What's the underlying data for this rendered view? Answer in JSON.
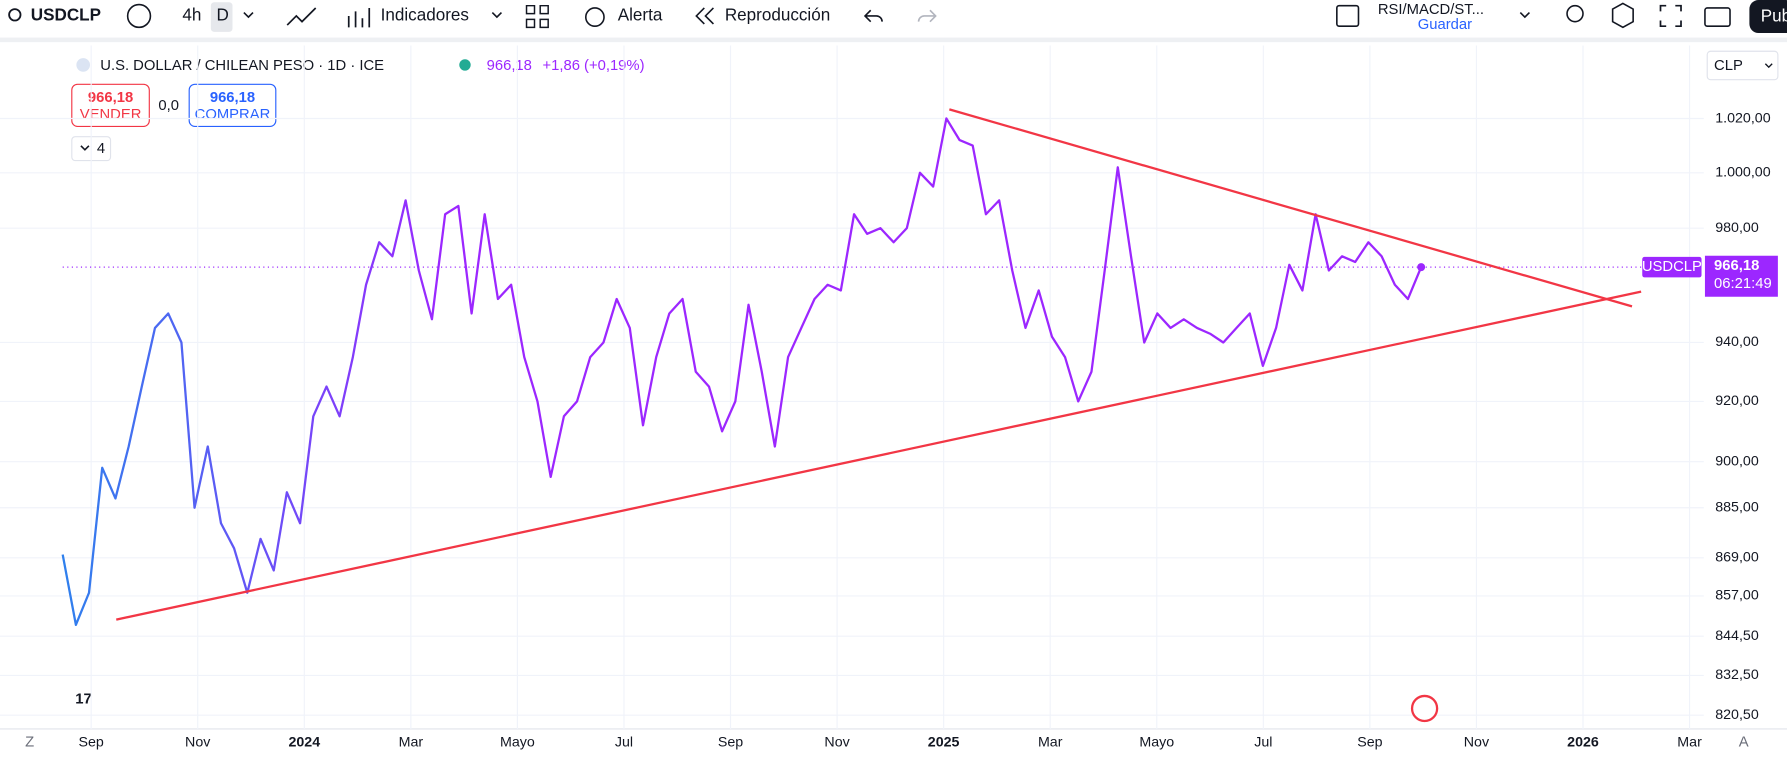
{
  "toolbar": {
    "symbol": "USDCLP",
    "intervals": [
      "4h",
      "D"
    ],
    "indicators": "Indicadores",
    "alert": "Alerta",
    "replay": "Reproducción",
    "layout": "RSI/MACD/ST...",
    "save": "Guardar",
    "publish": "Pub"
  },
  "legend": {
    "title": "U.S. DOLLAR / CHILEAN PESO · 1D · ICE",
    "price": "966,18",
    "change": "+1,86 (+0,19%)",
    "sell_price": "966,18",
    "sell": "VENDER",
    "spread": "0,0",
    "buy_price": "966,18",
    "buy": "COMPRAR",
    "indicators_count": "4"
  },
  "currency": "CLP",
  "bottom": {
    "left": "Z",
    "right": "A"
  },
  "chart": {
    "type": "line",
    "log_scale": true,
    "colors": [
      "#2f80ed",
      "#9c27ff"
    ],
    "trend_color": "#f23645",
    "ylim": [
      816.4,
      1047.5
    ],
    "yticks": [
      {
        "value": 1020,
        "label": "1.020,00"
      },
      {
        "value": 1000,
        "label": "1.000,00"
      },
      {
        "value": 980,
        "label": "980,00"
      },
      {
        "value": 940,
        "label": "940,00"
      },
      {
        "value": 920,
        "label": "920,00"
      },
      {
        "value": 900,
        "label": "900,00"
      },
      {
        "value": 885,
        "label": "885,00"
      },
      {
        "value": 869,
        "label": "869,00"
      },
      {
        "value": 857,
        "label": "857,00"
      },
      {
        "value": 844.5,
        "label": "844,50"
      },
      {
        "value": 832.5,
        "label": "832,50"
      },
      {
        "value": 820.5,
        "label": "820,50"
      }
    ],
    "xticks": [
      "Sep",
      "Nov",
      "2024",
      "Mar",
      "Mayo",
      "Jul",
      "Sep",
      "Nov",
      "2025",
      "Mar",
      "Mayo",
      "Jul",
      "Sep",
      "Nov",
      "2026",
      "Mar"
    ],
    "series": [
      {
        "name": "USDCLP",
        "values": [
          870,
          848,
          858,
          898,
          888,
          905,
          925,
          945,
          950,
          940,
          885,
          905,
          880,
          872,
          858,
          875,
          865,
          890,
          880,
          915,
          925,
          915,
          935,
          960,
          975,
          970,
          990,
          965,
          948,
          985,
          988,
          950,
          985,
          955,
          960,
          935,
          920,
          895,
          915,
          920,
          935,
          940,
          955,
          945,
          912,
          935,
          950,
          955,
          930,
          925,
          910,
          920,
          953,
          930,
          905,
          935,
          945,
          955,
          960,
          958,
          985,
          978,
          980,
          975,
          980,
          1000,
          995,
          1020,
          1012,
          1010,
          985,
          990,
          965,
          945,
          958,
          942,
          935,
          920,
          930,
          965,
          1002,
          970,
          940,
          950,
          945,
          948,
          945,
          943,
          940,
          945,
          950,
          932,
          945,
          967,
          958,
          985,
          965,
          970,
          968,
          975,
          970,
          960,
          955,
          966.18
        ]
      }
    ],
    "last_price": {
      "value": 966.18,
      "label": "966,18"
    },
    "countdown": "06:21:49"
  }
}
